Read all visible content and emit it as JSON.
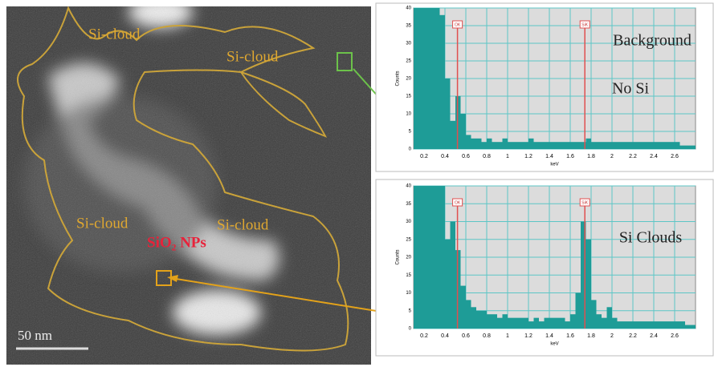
{
  "image": {
    "labels": [
      "Si-cloud",
      "Si-cloud",
      "Si-cloud",
      "Si-cloud"
    ],
    "particles": "SiO₂ NPs",
    "scale_bar": "50 nm"
  },
  "chart_data": [
    {
      "type": "histogram",
      "xlabel": "keV",
      "ylabel": "Counts",
      "color": "#1e9c97",
      "grid": true,
      "annotations": [
        "Background",
        "No Si"
      ],
      "markers": [
        {
          "label": "OK",
          "value": 0.52
        },
        {
          "label": "SiK",
          "value": 1.74
        }
      ],
      "bins": [
        0.1,
        0.15,
        0.2,
        0.25,
        0.3,
        0.35,
        0.4,
        0.45,
        0.5,
        0.55,
        0.6,
        0.65,
        0.7,
        0.75,
        0.8,
        0.85,
        0.9,
        0.95,
        1.0,
        1.05,
        1.1,
        1.15,
        1.2,
        1.25,
        1.3,
        1.35,
        1.4,
        1.45,
        1.5,
        1.55,
        1.6,
        1.65,
        1.7,
        1.75,
        1.8,
        1.85,
        1.9,
        1.95,
        2.0,
        2.05,
        2.1,
        2.15,
        2.2,
        2.25,
        2.3,
        2.35,
        2.4,
        2.45,
        2.5,
        2.55,
        2.6,
        2.65,
        2.7,
        2.75,
        2.8
      ],
      "counts": [
        40,
        40,
        40,
        40,
        40,
        38,
        20,
        8,
        15,
        10,
        4,
        3,
        3,
        2,
        3,
        2,
        2,
        3,
        2,
        2,
        2,
        2,
        3,
        2,
        2,
        2,
        2,
        2,
        2,
        2,
        2,
        2,
        2,
        3,
        2,
        2,
        2,
        2,
        2,
        2,
        2,
        2,
        2,
        2,
        2,
        2,
        2,
        2,
        2,
        2,
        2,
        1,
        1,
        1
      ],
      "xlim": [
        0.1,
        2.8
      ],
      "xticks": [
        0.2,
        0.4,
        0.6,
        0.8,
        1.0,
        1.2,
        1.4,
        1.6,
        1.8,
        2.0,
        2.2,
        2.4,
        2.6
      ],
      "ylim": [
        0,
        40
      ],
      "yticks": [
        0,
        5,
        10,
        15,
        20,
        25,
        30,
        35,
        40
      ]
    },
    {
      "type": "histogram",
      "xlabel": "keV",
      "ylabel": "Counts",
      "color": "#1e9c97",
      "grid": true,
      "annotations": [
        "Si Clouds"
      ],
      "markers": [
        {
          "label": "OK",
          "value": 0.52
        },
        {
          "label": "SiK",
          "value": 1.74
        }
      ],
      "bins": [
        0.1,
        0.15,
        0.2,
        0.25,
        0.3,
        0.35,
        0.4,
        0.45,
        0.5,
        0.55,
        0.6,
        0.65,
        0.7,
        0.75,
        0.8,
        0.85,
        0.9,
        0.95,
        1.0,
        1.05,
        1.1,
        1.15,
        1.2,
        1.25,
        1.3,
        1.35,
        1.4,
        1.45,
        1.5,
        1.55,
        1.6,
        1.65,
        1.7,
        1.75,
        1.8,
        1.85,
        1.9,
        1.95,
        2.0,
        2.05,
        2.1,
        2.15,
        2.2,
        2.25,
        2.3,
        2.35,
        2.4,
        2.45,
        2.5,
        2.55,
        2.6,
        2.65,
        2.7,
        2.75,
        2.8
      ],
      "counts": [
        40,
        40,
        40,
        40,
        40,
        40,
        25,
        30,
        22,
        12,
        8,
        6,
        5,
        5,
        4,
        4,
        3,
        4,
        3,
        3,
        3,
        3,
        2,
        3,
        2,
        3,
        3,
        3,
        3,
        2,
        4,
        10,
        30,
        25,
        8,
        4,
        3,
        6,
        3,
        2,
        2,
        2,
        2,
        2,
        2,
        2,
        2,
        2,
        2,
        2,
        2,
        2,
        1,
        1
      ],
      "xlim": [
        0.1,
        2.8
      ],
      "xticks": [
        0.2,
        0.4,
        0.6,
        0.8,
        1.0,
        1.2,
        1.4,
        1.6,
        1.8,
        2.0,
        2.2,
        2.4,
        2.6
      ],
      "ylim": [
        0,
        40
      ],
      "yticks": [
        0,
        5,
        10,
        15,
        20,
        25,
        30,
        35,
        40
      ]
    }
  ]
}
